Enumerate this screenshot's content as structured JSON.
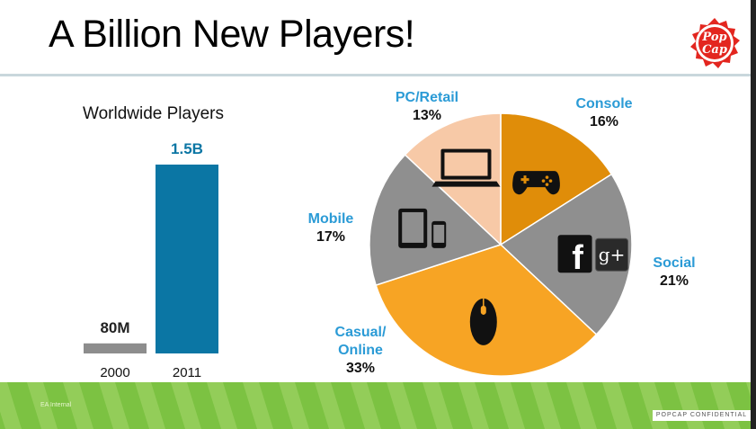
{
  "slide": {
    "title": "A Billion New Players!",
    "logo_text_1": "Pop",
    "logo_text_2": "Cap",
    "footer_left": "EA Internal",
    "footer_right": "POPCAP CONFIDENTIAL"
  },
  "chart_data": [
    {
      "type": "bar",
      "title": "Worldwide Players",
      "categories": [
        "2000",
        "2011"
      ],
      "values": [
        0.08,
        1.5
      ],
      "value_labels": [
        "80M",
        "1.5B"
      ],
      "units": "billion players",
      "colors": [
        "#8d8d8d",
        "#0b76a4"
      ],
      "ylim": [
        0,
        1.5
      ]
    },
    {
      "type": "pie",
      "categories": [
        "Console",
        "Social",
        "Casual/ Online",
        "Mobile",
        "PC/Retail"
      ],
      "label_lines": [
        [
          "Console"
        ],
        [
          "Social"
        ],
        [
          "Casual/",
          "Online"
        ],
        [
          "Mobile"
        ],
        [
          "PC/Retail"
        ]
      ],
      "values": [
        16,
        21,
        33,
        17,
        13
      ],
      "value_labels": [
        "16%",
        "21%",
        "33%",
        "17%",
        "13%"
      ],
      "colors": [
        "#e08d09",
        "#8f8f8f",
        "#f7a424",
        "#8f8f8f",
        "#f7c9a7"
      ],
      "icons": [
        "gamepad-icon",
        "facebook-googleplus-icon",
        "mouse-icon",
        "tablet-phone-icon",
        "laptop-icon"
      ]
    }
  ]
}
